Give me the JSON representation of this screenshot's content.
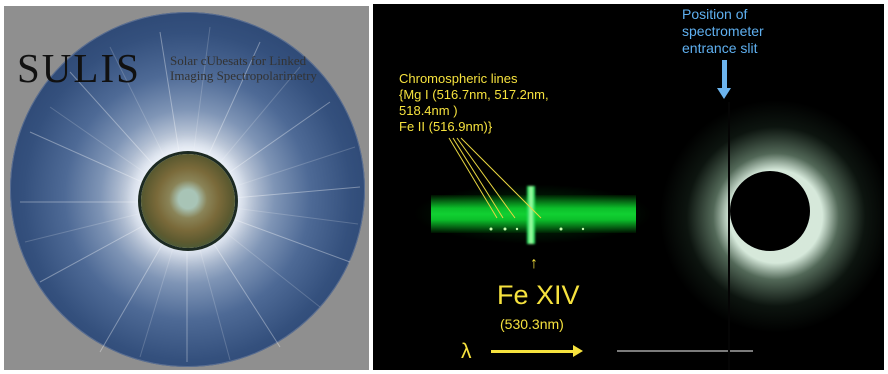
{
  "left": {
    "title": "SULIS",
    "subtitle_lines": [
      "Solar cUbesats for Linked",
      "Imaging Spectropolarimetry"
    ]
  },
  "right": {
    "chromo_lines": [
      "Chromospheric   lines",
      "{Mg I  (516.7nm, 517.2nm,",
      "518.4nm )",
      "Fe II (516.9nm)}"
    ],
    "fexiv_arrow": "↑",
    "fexiv_label": "Fe XIV",
    "fexiv_wavelength": "(530.3nm)",
    "lambda": "λ",
    "slit_label_lines": [
      "Position of",
      "spectrometer",
      "entrance slit"
    ]
  },
  "colors": {
    "annotation_yellow": "#f6e23e",
    "annotation_blue": "#5fb0f0",
    "spectrum_green": "#11d032"
  }
}
